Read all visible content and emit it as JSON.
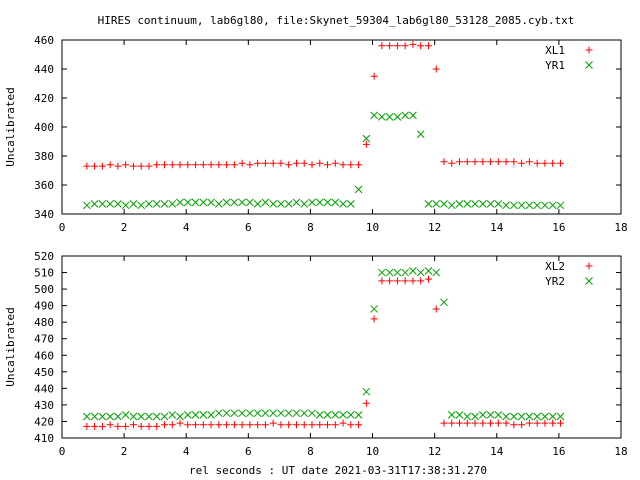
{
  "title": "HIRES continuum, lab6gl80, file:Skynet_59304_lab6gl80_53128_2085.cyb.txt",
  "xlabel": "rel seconds : UT date 2021-03-31T17:38:31.270",
  "chart_data": [
    {
      "type": "scatter",
      "ylabel": "Uncalibrated",
      "xlim": [
        0,
        18
      ],
      "ylim": [
        340,
        460
      ],
      "xticks": [
        0,
        2,
        4,
        6,
        8,
        10,
        12,
        14,
        16,
        18
      ],
      "yticks": [
        340,
        360,
        380,
        400,
        420,
        440,
        460
      ],
      "legend_position": "top-right",
      "grid": false,
      "series": [
        {
          "name": "XL1",
          "marker": "plus",
          "color": "#ff0000",
          "x": [
            0.8,
            1.05,
            1.3,
            1.55,
            1.8,
            2.05,
            2.3,
            2.55,
            2.8,
            3.05,
            3.3,
            3.55,
            3.8,
            4.05,
            4.3,
            4.55,
            4.8,
            5.05,
            5.3,
            5.55,
            5.8,
            6.05,
            6.3,
            6.55,
            6.8,
            7.05,
            7.3,
            7.55,
            7.8,
            8.05,
            8.3,
            8.55,
            8.8,
            9.05,
            9.3,
            9.55,
            9.8,
            10.05,
            10.3,
            10.55,
            10.8,
            11.05,
            11.3,
            11.55,
            11.8,
            12.05,
            12.3,
            12.55,
            12.8,
            13.05,
            13.3,
            13.55,
            13.8,
            14.05,
            14.3,
            14.55,
            14.8,
            15.05,
            15.3,
            15.55,
            15.8,
            16.05
          ],
          "y": [
            373,
            373,
            373,
            374,
            373,
            374,
            373,
            373,
            373,
            374,
            374,
            374,
            374,
            374,
            374,
            374,
            374,
            374,
            374,
            374,
            375,
            374,
            375,
            375,
            375,
            375,
            374,
            375,
            375,
            374,
            375,
            374,
            375,
            374,
            374,
            374,
            388,
            435,
            456,
            456,
            456,
            456,
            457,
            456,
            456,
            440,
            376,
            375,
            376,
            376,
            376,
            376,
            376,
            376,
            376,
            376,
            375,
            376,
            375,
            375,
            375,
            375
          ],
          "x_idx_note": ""
        },
        {
          "name": "YR1",
          "marker": "cross",
          "color": "#00a000",
          "x": [
            0.8,
            1.05,
            1.3,
            1.55,
            1.8,
            2.05,
            2.3,
            2.55,
            2.8,
            3.05,
            3.3,
            3.55,
            3.8,
            4.05,
            4.3,
            4.55,
            4.8,
            5.05,
            5.3,
            5.55,
            5.8,
            6.05,
            6.3,
            6.55,
            6.8,
            7.05,
            7.3,
            7.55,
            7.8,
            8.05,
            8.3,
            8.55,
            8.8,
            9.05,
            9.3,
            9.55,
            9.8,
            10.05,
            10.3,
            10.55,
            10.8,
            11.05,
            11.3,
            11.55,
            11.8,
            12.05,
            12.3,
            12.55,
            12.8,
            13.05,
            13.3,
            13.55,
            13.8,
            14.05,
            14.3,
            14.55,
            14.8,
            15.05,
            15.3,
            15.55,
            15.8,
            16.05
          ],
          "y": [
            346,
            347,
            347,
            347,
            347,
            346,
            347,
            346,
            347,
            347,
            347,
            347,
            348,
            348,
            348,
            348,
            348,
            347,
            348,
            348,
            348,
            348,
            347,
            348,
            347,
            347,
            347,
            348,
            347,
            348,
            348,
            348,
            348,
            347,
            347,
            357,
            392,
            408,
            407,
            407,
            407,
            408,
            408,
            395,
            347,
            347,
            347,
            346,
            347,
            347,
            347,
            347,
            347,
            347,
            346,
            346,
            346,
            346,
            346,
            346,
            346,
            346
          ]
        }
      ]
    },
    {
      "type": "scatter",
      "ylabel": "Uncalibrated",
      "xlim": [
        0,
        18
      ],
      "ylim": [
        410,
        520
      ],
      "xticks": [
        0,
        2,
        4,
        6,
        8,
        10,
        12,
        14,
        16,
        18
      ],
      "yticks": [
        410,
        420,
        430,
        440,
        450,
        460,
        470,
        480,
        490,
        500,
        510,
        520
      ],
      "legend_position": "top-right",
      "grid": false,
      "series": [
        {
          "name": "XL2",
          "marker": "plus",
          "color": "#ff0000",
          "x": [
            0.8,
            1.05,
            1.3,
            1.55,
            1.8,
            2.05,
            2.3,
            2.55,
            2.8,
            3.05,
            3.3,
            3.55,
            3.8,
            4.05,
            4.3,
            4.55,
            4.8,
            5.05,
            5.3,
            5.55,
            5.8,
            6.05,
            6.3,
            6.55,
            6.8,
            7.05,
            7.3,
            7.55,
            7.8,
            8.05,
            8.3,
            8.55,
            8.8,
            9.05,
            9.3,
            9.55,
            9.8,
            10.05,
            10.3,
            10.55,
            10.8,
            11.05,
            11.3,
            11.55,
            11.8,
            12.05,
            12.3,
            12.55,
            12.8,
            13.05,
            13.3,
            13.55,
            13.8,
            14.05,
            14.3,
            14.55,
            14.8,
            15.05,
            15.3,
            15.55,
            15.8,
            16.05
          ],
          "y": [
            417,
            417,
            417,
            418,
            417,
            417,
            418,
            417,
            417,
            417,
            418,
            418,
            419,
            418,
            418,
            418,
            418,
            418,
            418,
            418,
            418,
            418,
            418,
            418,
            419,
            418,
            418,
            418,
            418,
            418,
            418,
            418,
            418,
            419,
            418,
            418,
            431,
            482,
            505,
            505,
            505,
            505,
            505,
            505,
            506,
            488,
            419,
            419,
            419,
            419,
            419,
            419,
            419,
            419,
            419,
            418,
            418,
            419,
            419,
            419,
            419,
            419
          ],
          "x_idx_note": ""
        },
        {
          "name": "YR2",
          "marker": "cross",
          "color": "#00a000",
          "x": [
            0.8,
            1.05,
            1.3,
            1.55,
            1.8,
            2.05,
            2.3,
            2.55,
            2.8,
            3.05,
            3.3,
            3.55,
            3.8,
            4.05,
            4.3,
            4.55,
            4.8,
            5.05,
            5.3,
            5.55,
            5.8,
            6.05,
            6.3,
            6.55,
            6.8,
            7.05,
            7.3,
            7.55,
            7.8,
            8.05,
            8.3,
            8.55,
            8.8,
            9.05,
            9.3,
            9.55,
            9.8,
            10.05,
            10.3,
            10.55,
            10.8,
            11.05,
            11.3,
            11.55,
            11.8,
            12.05,
            12.3,
            12.55,
            12.8,
            13.05,
            13.3,
            13.55,
            13.8,
            14.05,
            14.3,
            14.55,
            14.8,
            15.05,
            15.3,
            15.55,
            15.8,
            16.05
          ],
          "y": [
            423,
            423,
            423,
            423,
            423,
            424,
            423,
            423,
            423,
            423,
            423,
            424,
            423,
            424,
            424,
            424,
            424,
            425,
            425,
            425,
            425,
            425,
            425,
            425,
            425,
            425,
            425,
            425,
            425,
            425,
            424,
            424,
            424,
            424,
            424,
            424,
            438,
            488,
            510,
            510,
            510,
            510,
            511,
            510,
            511,
            510,
            492,
            424,
            424,
            423,
            423,
            424,
            424,
            424,
            423,
            423,
            423,
            423,
            423,
            423,
            423,
            423
          ]
        }
      ]
    }
  ]
}
